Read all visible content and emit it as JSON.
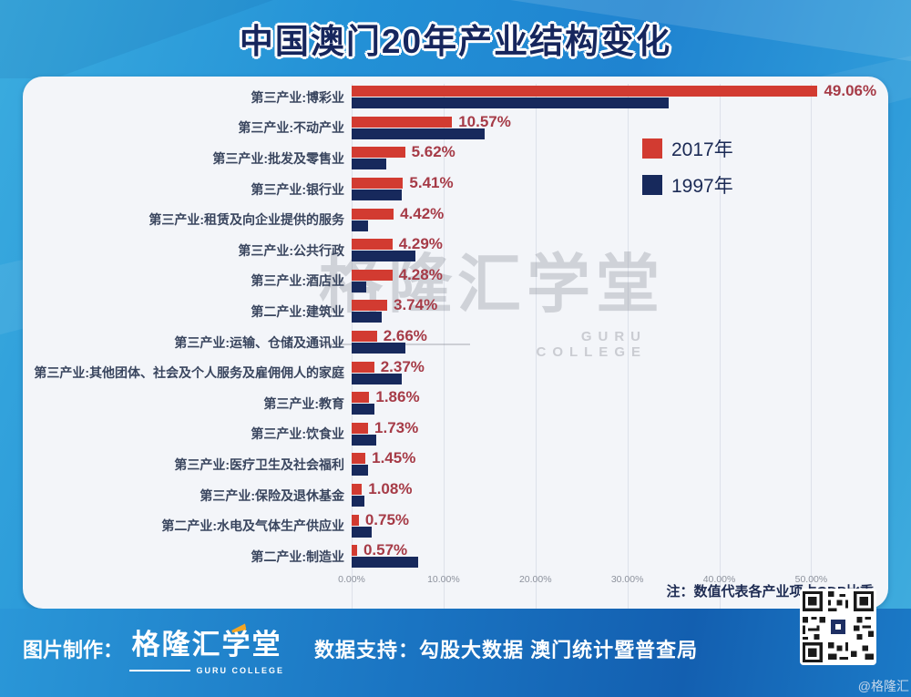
{
  "header": {
    "title": "中国澳门20年产业结构变化"
  },
  "chart_data": {
    "type": "bar",
    "orientation": "horizontal-grouped",
    "title": "中国澳门20年产业结构变化",
    "categories": [
      "第三产业:博彩业",
      "第三产业:不动产业",
      "第三产业:批发及零售业",
      "第三产业:银行业",
      "第三产业:租赁及向企业提供的服务",
      "第三产业:公共行政",
      "第三产业:酒店业",
      "第二产业:建筑业",
      "第三产业:运输、仓储及通讯业",
      "第三产业:其他团体、社会及个人服务及雇佣佣人的家庭",
      "第三产业:教育",
      "第三产业:饮食业",
      "第三产业:医疗卫生及社会福利",
      "第三产业:保险及退休基金",
      "第二产业:水电及气体生产供应业",
      "第二产业:制造业"
    ],
    "series": [
      {
        "name": "2017年",
        "color": "#d23b31",
        "values": [
          49.06,
          10.57,
          5.62,
          5.41,
          4.42,
          4.29,
          4.28,
          3.74,
          2.66,
          2.37,
          1.86,
          1.73,
          1.45,
          1.08,
          0.75,
          0.57
        ],
        "labels": [
          "49.06%",
          "10.57%",
          "5.62%",
          "5.41%",
          "4.42%",
          "4.29%",
          "4.28%",
          "3.74%",
          "2.66%",
          "2.37%",
          "1.86%",
          "1.73%",
          "1.45%",
          "1.08%",
          "0.75%",
          "0.57%"
        ]
      },
      {
        "name": "1997年",
        "color": "#17295c",
        "values": [
          33.4,
          14.0,
          3.6,
          5.3,
          1.7,
          6.7,
          1.5,
          3.2,
          5.7,
          5.3,
          2.4,
          2.6,
          1.7,
          1.3,
          2.1,
          7.0
        ],
        "labels": []
      }
    ],
    "x_ticks": [
      "0.00%",
      "10.00%",
      "20.00%",
      "30.00%",
      "40.00%",
      "50.00%"
    ],
    "x_tick_values": [
      0,
      10,
      20,
      30,
      40,
      50
    ],
    "x_max_percent": 56.5,
    "grid": "vertical-on",
    "legend_position": "upper-right-inside",
    "note": "注：数值代表各产业项占GDP比重",
    "value_unit": "% of GDP"
  },
  "watermark": {
    "line1": "格隆汇学堂",
    "line2": "GURU COLLEGE"
  },
  "footer": {
    "made_by_label": "图片制作：",
    "logo_text": "格隆汇学堂",
    "logo_sub": "GURU COLLEGE",
    "support_text": "数据支持：勾股大数据  澳门统计暨普查局",
    "handle": "@格隆汇"
  },
  "colors": {
    "series_2017": "#d23b31",
    "series_1997": "#17295c",
    "value_label": "#a63b47",
    "panel_bg": "#f3f5f9",
    "banner_blue": "#2391d6",
    "title_text": "#16265d"
  },
  "icons": {
    "qr_code": "qr-code"
  }
}
